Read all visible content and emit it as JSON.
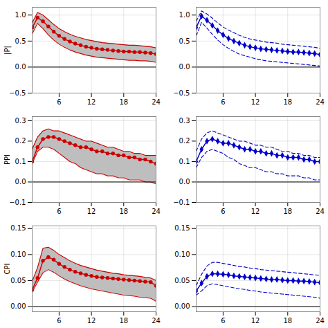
{
  "chart_data": [
    {
      "type": "line",
      "ylabel": "|P|",
      "x": [
        1,
        2,
        3,
        4,
        5,
        6,
        7,
        8,
        9,
        10,
        11,
        12,
        13,
        14,
        15,
        16,
        17,
        18,
        19,
        20,
        21,
        22,
        23,
        24
      ],
      "xlim": [
        1,
        24
      ],
      "xticks": [
        6,
        12,
        18,
        24
      ],
      "ylim": [
        -0.5,
        1.15
      ],
      "yticks": [
        {
          "value": -0.5,
          "label": "−0.5"
        },
        {
          "value": 0,
          "label": "0.0"
        },
        {
          "value": 0.5,
          "label": "0.5"
        },
        {
          "value": 1,
          "label": "1.0"
        }
      ],
      "grid": true,
      "hline": 0,
      "series": [
        {
          "type": "area",
          "color": "#BEBEBE",
          "upper": [
            0.85,
            1.05,
            1.0,
            0.91,
            0.82,
            0.74,
            0.68,
            0.63,
            0.59,
            0.56,
            0.53,
            0.51,
            0.49,
            0.47,
            0.46,
            0.45,
            0.44,
            0.43,
            0.42,
            0.42,
            0.41,
            0.4,
            0.39,
            0.37
          ],
          "lower": [
            0.64,
            0.84,
            0.74,
            0.62,
            0.52,
            0.44,
            0.38,
            0.33,
            0.29,
            0.26,
            0.23,
            0.21,
            0.19,
            0.18,
            0.17,
            0.16,
            0.15,
            0.14,
            0.13,
            0.13,
            0.12,
            0.12,
            0.11,
            0.09
          ]
        },
        {
          "type": "line",
          "color": "#CC0000",
          "line_style": "solid",
          "values": [
            0.85,
            1.05,
            1.0,
            0.91,
            0.82,
            0.74,
            0.68,
            0.63,
            0.59,
            0.56,
            0.53,
            0.51,
            0.49,
            0.47,
            0.46,
            0.45,
            0.44,
            0.43,
            0.42,
            0.42,
            0.41,
            0.4,
            0.39,
            0.37
          ]
        },
        {
          "type": "line",
          "color": "#CC0000",
          "line_style": "solid",
          "values": [
            0.64,
            0.84,
            0.74,
            0.62,
            0.52,
            0.44,
            0.38,
            0.33,
            0.29,
            0.26,
            0.23,
            0.21,
            0.19,
            0.18,
            0.17,
            0.16,
            0.15,
            0.14,
            0.13,
            0.13,
            0.12,
            0.12,
            0.11,
            0.09
          ]
        },
        {
          "type": "line",
          "color": "#CC0000",
          "line_style": "solid",
          "marker": "circle",
          "values": [
            0.76,
            0.95,
            0.88,
            0.78,
            0.68,
            0.6,
            0.54,
            0.49,
            0.45,
            0.42,
            0.39,
            0.37,
            0.35,
            0.34,
            0.33,
            0.32,
            0.31,
            0.3,
            0.3,
            0.29,
            0.29,
            0.28,
            0.27,
            0.25
          ]
        }
      ]
    },
    {
      "type": "line",
      "x": [
        1,
        2,
        3,
        4,
        5,
        6,
        7,
        8,
        9,
        10,
        11,
        12,
        13,
        14,
        15,
        16,
        17,
        18,
        19,
        20,
        21,
        22,
        23,
        24
      ],
      "xlim": [
        1,
        24
      ],
      "xticks": [
        6,
        12,
        18,
        24
      ],
      "ylim": [
        -0.5,
        1.15
      ],
      "yticks": [
        {
          "value": -0.5,
          "label": "−0.5"
        },
        {
          "value": 0,
          "label": "0.0"
        },
        {
          "value": 0.5,
          "label": "0.5"
        },
        {
          "value": 1,
          "label": "1.0"
        }
      ],
      "grid": true,
      "hline": 0,
      "series": [
        {
          "type": "line",
          "color": "#0000CC",
          "line_style": "dashed",
          "values": [
            0.88,
            1.08,
            1.02,
            0.94,
            0.85,
            0.77,
            0.71,
            0.66,
            0.61,
            0.57,
            0.54,
            0.52,
            0.5,
            0.48,
            0.47,
            0.46,
            0.44,
            0.43,
            0.42,
            0.41,
            0.4,
            0.39,
            0.38,
            0.36
          ]
        },
        {
          "type": "line",
          "color": "#0000CC",
          "line_style": "dashed",
          "values": [
            0.6,
            0.86,
            0.75,
            0.63,
            0.52,
            0.43,
            0.36,
            0.3,
            0.25,
            0.22,
            0.19,
            0.16,
            0.14,
            0.12,
            0.11,
            0.1,
            0.09,
            0.08,
            0.07,
            0.06,
            0.05,
            0.04,
            0.03,
            0.02
          ]
        },
        {
          "type": "line",
          "color": "#0000CC",
          "line_style": "solid",
          "marker": "diamond",
          "values": [
            0.76,
            0.98,
            0.9,
            0.8,
            0.7,
            0.62,
            0.55,
            0.5,
            0.46,
            0.42,
            0.39,
            0.37,
            0.35,
            0.34,
            0.33,
            0.32,
            0.31,
            0.3,
            0.29,
            0.29,
            0.28,
            0.27,
            0.26,
            0.24
          ]
        }
      ]
    },
    {
      "type": "line",
      "ylabel": "PPI",
      "x": [
        1,
        2,
        3,
        4,
        5,
        6,
        7,
        8,
        9,
        10,
        11,
        12,
        13,
        14,
        15,
        16,
        17,
        18,
        19,
        20,
        21,
        22,
        23,
        24
      ],
      "xlim": [
        1,
        24
      ],
      "xticks": [
        6,
        12,
        18,
        24
      ],
      "ylim": [
        -0.1,
        0.32
      ],
      "yticks": [
        {
          "value": -0.1,
          "label": "−0.1"
        },
        {
          "value": 0,
          "label": "0.0"
        },
        {
          "value": 0.1,
          "label": "0.1"
        },
        {
          "value": 0.2,
          "label": "0.2"
        },
        {
          "value": 0.3,
          "label": "0.3"
        }
      ],
      "grid": true,
      "hline": 0,
      "series": [
        {
          "type": "area",
          "color": "#BEBEBE",
          "upper": [
            0.16,
            0.22,
            0.25,
            0.26,
            0.25,
            0.25,
            0.24,
            0.23,
            0.22,
            0.21,
            0.2,
            0.2,
            0.19,
            0.18,
            0.17,
            0.17,
            0.16,
            0.15,
            0.15,
            0.14,
            0.14,
            0.13,
            0.13,
            0.13
          ],
          "lower": [
            0.09,
            0.15,
            0.17,
            0.17,
            0.16,
            0.14,
            0.12,
            0.1,
            0.09,
            0.07,
            0.06,
            0.05,
            0.04,
            0.04,
            0.03,
            0.03,
            0.02,
            0.02,
            0.01,
            0.01,
            0.01,
            0.0,
            0.0,
            -0.01
          ]
        },
        {
          "type": "line",
          "color": "#CC0000",
          "line_style": "solid",
          "values": [
            0.16,
            0.22,
            0.25,
            0.26,
            0.25,
            0.25,
            0.24,
            0.23,
            0.22,
            0.21,
            0.2,
            0.2,
            0.19,
            0.18,
            0.17,
            0.17,
            0.16,
            0.15,
            0.15,
            0.14,
            0.14,
            0.13,
            0.13,
            0.13
          ]
        },
        {
          "type": "line",
          "color": "#CC0000",
          "line_style": "solid",
          "values": [
            0.09,
            0.15,
            0.17,
            0.17,
            0.16,
            0.14,
            0.12,
            0.1,
            0.09,
            0.07,
            0.06,
            0.05,
            0.04,
            0.04,
            0.03,
            0.03,
            0.02,
            0.02,
            0.01,
            0.01,
            0.01,
            0.0,
            0.0,
            -0.01
          ]
        },
        {
          "type": "line",
          "color": "#CC0000",
          "line_style": "solid",
          "marker": "circle",
          "values": [
            0.1,
            0.17,
            0.21,
            0.22,
            0.22,
            0.21,
            0.2,
            0.19,
            0.18,
            0.17,
            0.17,
            0.16,
            0.15,
            0.15,
            0.14,
            0.14,
            0.13,
            0.13,
            0.12,
            0.12,
            0.11,
            0.11,
            0.1,
            0.09
          ]
        }
      ]
    },
    {
      "type": "line",
      "x": [
        1,
        2,
        3,
        4,
        5,
        6,
        7,
        8,
        9,
        10,
        11,
        12,
        13,
        14,
        15,
        16,
        17,
        18,
        19,
        20,
        21,
        22,
        23,
        24
      ],
      "xlim": [
        1,
        24
      ],
      "xticks": [
        6,
        12,
        18,
        24
      ],
      "ylim": [
        -0.1,
        0.32
      ],
      "yticks": [
        {
          "value": -0.1,
          "label": "−0.1"
        },
        {
          "value": 0,
          "label": "0.0"
        },
        {
          "value": 0.1,
          "label": "0.1"
        },
        {
          "value": 0.2,
          "label": "0.2"
        },
        {
          "value": 0.3,
          "label": "0.3"
        }
      ],
      "grid": true,
      "hline": 0,
      "series": [
        {
          "type": "line",
          "color": "#0000CC",
          "line_style": "dashed",
          "values": [
            0.15,
            0.21,
            0.24,
            0.25,
            0.24,
            0.23,
            0.22,
            0.21,
            0.2,
            0.2,
            0.19,
            0.18,
            0.18,
            0.17,
            0.17,
            0.16,
            0.15,
            0.15,
            0.14,
            0.14,
            0.13,
            0.13,
            0.12,
            0.12
          ]
        },
        {
          "type": "line",
          "color": "#0000CC",
          "line_style": "dashed",
          "values": [
            0.07,
            0.12,
            0.15,
            0.16,
            0.15,
            0.14,
            0.12,
            0.11,
            0.09,
            0.08,
            0.07,
            0.07,
            0.06,
            0.05,
            0.05,
            0.04,
            0.04,
            0.03,
            0.03,
            0.03,
            0.02,
            0.02,
            0.01,
            0.01
          ]
        },
        {
          "type": "line",
          "color": "#0000CC",
          "line_style": "solid",
          "marker": "diamond",
          "values": [
            0.1,
            0.16,
            0.2,
            0.21,
            0.2,
            0.19,
            0.19,
            0.18,
            0.17,
            0.16,
            0.16,
            0.15,
            0.15,
            0.14,
            0.14,
            0.13,
            0.13,
            0.12,
            0.12,
            0.12,
            0.11,
            0.11,
            0.1,
            0.1
          ]
        }
      ]
    },
    {
      "type": "line",
      "ylabel": "CPI",
      "x": [
        1,
        2,
        3,
        4,
        5,
        6,
        7,
        8,
        9,
        10,
        11,
        12,
        13,
        14,
        15,
        16,
        17,
        18,
        19,
        20,
        21,
        22,
        23,
        24
      ],
      "xlim": [
        1,
        24
      ],
      "xticks": [
        6,
        12,
        18,
        24
      ],
      "ylim": [
        -0.01,
        0.155
      ],
      "yticks": [
        {
          "value": 0,
          "label": "0.00"
        },
        {
          "value": 0.05,
          "label": "0.05"
        },
        {
          "value": 0.1,
          "label": "0.10"
        },
        {
          "value": 0.15,
          "label": "0.15"
        }
      ],
      "grid": true,
      "hline": 0,
      "series": [
        {
          "type": "area",
          "color": "#BEBEBE",
          "upper": [
            0.048,
            0.075,
            0.112,
            0.114,
            0.108,
            0.1,
            0.094,
            0.088,
            0.083,
            0.079,
            0.076,
            0.073,
            0.07,
            0.068,
            0.066,
            0.064,
            0.063,
            0.061,
            0.06,
            0.059,
            0.058,
            0.056,
            0.055,
            0.05
          ],
          "lower": [
            0.028,
            0.047,
            0.065,
            0.071,
            0.066,
            0.059,
            0.053,
            0.048,
            0.044,
            0.04,
            0.037,
            0.034,
            0.032,
            0.03,
            0.028,
            0.026,
            0.024,
            0.022,
            0.021,
            0.02,
            0.018,
            0.017,
            0.016,
            0.01
          ]
        },
        {
          "type": "line",
          "color": "#CC0000",
          "line_style": "solid",
          "values": [
            0.048,
            0.075,
            0.112,
            0.114,
            0.108,
            0.1,
            0.094,
            0.088,
            0.083,
            0.079,
            0.076,
            0.073,
            0.07,
            0.068,
            0.066,
            0.064,
            0.063,
            0.061,
            0.06,
            0.059,
            0.058,
            0.056,
            0.055,
            0.05
          ]
        },
        {
          "type": "line",
          "color": "#CC0000",
          "line_style": "solid",
          "values": [
            0.028,
            0.047,
            0.065,
            0.071,
            0.066,
            0.059,
            0.053,
            0.048,
            0.044,
            0.04,
            0.037,
            0.034,
            0.032,
            0.03,
            0.028,
            0.026,
            0.024,
            0.022,
            0.021,
            0.02,
            0.018,
            0.017,
            0.016,
            0.01
          ]
        },
        {
          "type": "line",
          "color": "#CC0000",
          "line_style": "solid",
          "marker": "circle",
          "values": [
            0.032,
            0.055,
            0.088,
            0.095,
            0.09,
            0.082,
            0.076,
            0.071,
            0.067,
            0.064,
            0.061,
            0.059,
            0.057,
            0.056,
            0.055,
            0.054,
            0.053,
            0.052,
            0.051,
            0.05,
            0.049,
            0.048,
            0.047,
            0.04
          ]
        }
      ]
    },
    {
      "type": "line",
      "x": [
        1,
        2,
        3,
        4,
        5,
        6,
        7,
        8,
        9,
        10,
        11,
        12,
        13,
        14,
        15,
        16,
        17,
        18,
        19,
        20,
        21,
        22,
        23,
        24
      ],
      "xlim": [
        1,
        24
      ],
      "xticks": [
        6,
        12,
        18,
        24
      ],
      "ylim": [
        -0.01,
        0.155
      ],
      "yticks": [
        {
          "value": 0,
          "label": "0.00"
        },
        {
          "value": 0.05,
          "label": "0.05"
        },
        {
          "value": 0.1,
          "label": "0.10"
        },
        {
          "value": 0.15,
          "label": "0.15"
        }
      ],
      "grid": true,
      "hline": 0,
      "series": [
        {
          "type": "line",
          "color": "#0000CC",
          "line_style": "dashed",
          "values": [
            0.04,
            0.062,
            0.078,
            0.085,
            0.085,
            0.083,
            0.081,
            0.079,
            0.077,
            0.076,
            0.074,
            0.073,
            0.071,
            0.07,
            0.069,
            0.068,
            0.067,
            0.066,
            0.065,
            0.064,
            0.063,
            0.062,
            0.061,
            0.06
          ]
        },
        {
          "type": "line",
          "color": "#0000CC",
          "line_style": "dashed",
          "values": [
            0.022,
            0.03,
            0.04,
            0.044,
            0.042,
            0.04,
            0.038,
            0.036,
            0.034,
            0.033,
            0.031,
            0.03,
            0.028,
            0.027,
            0.026,
            0.025,
            0.024,
            0.023,
            0.022,
            0.021,
            0.02,
            0.019,
            0.018,
            0.016
          ]
        },
        {
          "type": "line",
          "color": "#0000CC",
          "line_style": "solid",
          "marker": "diamond",
          "values": [
            0.03,
            0.045,
            0.058,
            0.063,
            0.063,
            0.062,
            0.061,
            0.059,
            0.058,
            0.057,
            0.056,
            0.055,
            0.054,
            0.053,
            0.052,
            0.052,
            0.051,
            0.05,
            0.05,
            0.049,
            0.049,
            0.048,
            0.047,
            0.046
          ]
        }
      ]
    }
  ]
}
